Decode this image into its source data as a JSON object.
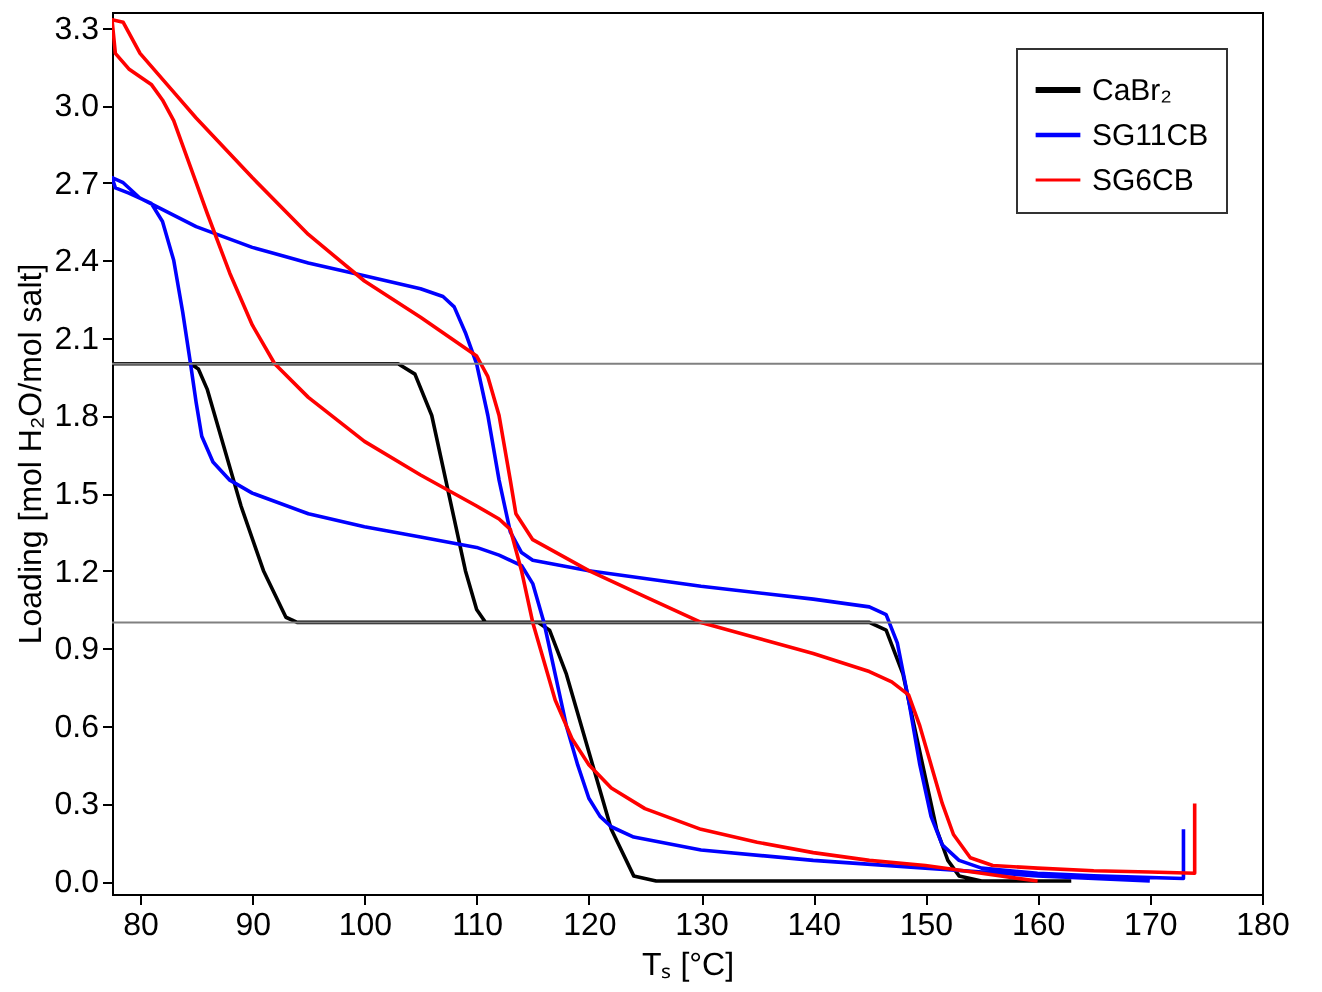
{
  "chart_data": {
    "type": "line",
    "xlabel": "Tₛ [°C]",
    "ylabel": "Loading [mol H₂O/mol salt]",
    "xlim": [
      77.5,
      180
    ],
    "xticks": [
      80,
      90,
      100,
      110,
      120,
      130,
      140,
      150,
      160,
      170,
      180
    ],
    "ylim": [
      -0.05,
      3.36
    ],
    "yticks": [
      {
        "value": 0,
        "label": "0.0"
      },
      0.3,
      0.6,
      0.9,
      1.2,
      1.5,
      1.8,
      2.1,
      2.4,
      2.7,
      {
        "value": 3,
        "label": "3.0"
      },
      3.3
    ],
    "grid": false,
    "legend": "top right",
    "ref_lines": [
      {
        "axis": "y",
        "value": 2,
        "color": "#808080"
      },
      {
        "axis": "y",
        "value": 1,
        "color": "#808080"
      }
    ],
    "series": [
      {
        "name": "CaBr₂",
        "color": "#000000",
        "x": [
          163,
          140,
          126,
          124,
          122,
          120,
          118,
          116.5,
          115.5,
          110,
          100,
          94,
          93,
          91,
          89,
          88,
          87,
          86,
          85.2,
          84.5,
          80,
          77.5,
          90,
          103,
          104.5,
          106,
          107,
          108,
          109,
          110,
          110.8,
          120,
          140,
          145,
          146.5,
          148,
          149,
          150,
          151,
          152,
          153,
          155,
          160
        ],
        "values": [
          0,
          0,
          0,
          0.02,
          0.2,
          0.5,
          0.8,
          0.97,
          1.0,
          1.0,
          1.0,
          1.0,
          1.02,
          1.2,
          1.45,
          1.6,
          1.75,
          1.9,
          1.98,
          2.0,
          2.0,
          2.0,
          2.0,
          2.0,
          1.96,
          1.8,
          1.6,
          1.4,
          1.2,
          1.05,
          1.0,
          1.0,
          1.0,
          1.0,
          0.97,
          0.8,
          0.6,
          0.4,
          0.2,
          0.08,
          0.02,
          0,
          0
        ]
      },
      {
        "name": "SG11CB",
        "color": "#0000ff",
        "x": [
          170,
          160,
          150,
          140,
          130,
          124,
          122,
          121,
          120,
          119,
          118,
          117,
          116,
          115,
          114,
          112,
          110,
          105,
          100,
          95,
          90,
          88,
          86.5,
          85.5,
          85,
          84.5,
          83.8,
          83,
          82,
          81,
          79,
          77.8,
          77.5,
          78.5,
          80,
          85,
          90,
          95,
          100,
          105,
          107,
          108,
          109,
          110,
          111,
          112,
          113,
          114,
          115,
          120,
          125,
          130,
          140,
          145,
          146.5,
          147.5,
          148.5,
          149.5,
          150.5,
          151.5,
          153,
          155,
          160,
          165,
          173,
          173
        ],
        "values": [
          0.0,
          0.02,
          0.05,
          0.08,
          0.12,
          0.17,
          0.21,
          0.25,
          0.32,
          0.45,
          0.6,
          0.8,
          1.0,
          1.15,
          1.22,
          1.26,
          1.29,
          1.33,
          1.37,
          1.42,
          1.5,
          1.55,
          1.62,
          1.72,
          1.85,
          2.0,
          2.2,
          2.4,
          2.55,
          2.62,
          2.66,
          2.68,
          2.72,
          2.7,
          2.64,
          2.53,
          2.45,
          2.39,
          2.34,
          2.29,
          2.26,
          2.22,
          2.12,
          2.0,
          1.8,
          1.55,
          1.35,
          1.27,
          1.24,
          1.2,
          1.17,
          1.14,
          1.09,
          1.06,
          1.03,
          0.92,
          0.7,
          0.45,
          0.25,
          0.14,
          0.08,
          0.05,
          0.03,
          0.02,
          0.01,
          0.2
        ]
      },
      {
        "name": "SG6CB",
        "color": "#ff0000",
        "x": [
          160,
          155,
          150,
          145,
          140,
          135,
          130,
          125,
          122,
          120,
          118.5,
          117,
          116,
          115,
          114,
          113,
          112,
          110,
          105,
          100,
          95,
          92,
          90,
          88,
          86,
          85,
          84,
          83,
          82,
          81,
          79,
          77.8,
          77.5,
          78.5,
          80,
          83,
          85,
          90,
          95,
          100,
          105,
          110,
          111,
          112,
          113,
          113.5,
          115,
          120,
          125,
          130,
          135,
          140,
          145,
          147,
          148.5,
          149.5,
          150.5,
          151.5,
          152.5,
          154,
          156,
          160,
          165,
          170,
          174,
          174
        ],
        "values": [
          0.0,
          0.03,
          0.06,
          0.08,
          0.11,
          0.15,
          0.2,
          0.28,
          0.36,
          0.45,
          0.55,
          0.7,
          0.85,
          1.0,
          1.2,
          1.36,
          1.4,
          1.45,
          1.57,
          1.7,
          1.87,
          2.0,
          2.15,
          2.35,
          2.58,
          2.7,
          2.82,
          2.94,
          3.02,
          3.08,
          3.14,
          3.2,
          3.33,
          3.32,
          3.2,
          3.05,
          2.95,
          2.72,
          2.5,
          2.32,
          2.18,
          2.03,
          1.95,
          1.8,
          1.55,
          1.42,
          1.32,
          1.2,
          1.1,
          1.0,
          0.94,
          0.88,
          0.81,
          0.77,
          0.72,
          0.6,
          0.45,
          0.3,
          0.18,
          0.09,
          0.06,
          0.05,
          0.04,
          0.035,
          0.03,
          0.3
        ]
      }
    ]
  }
}
